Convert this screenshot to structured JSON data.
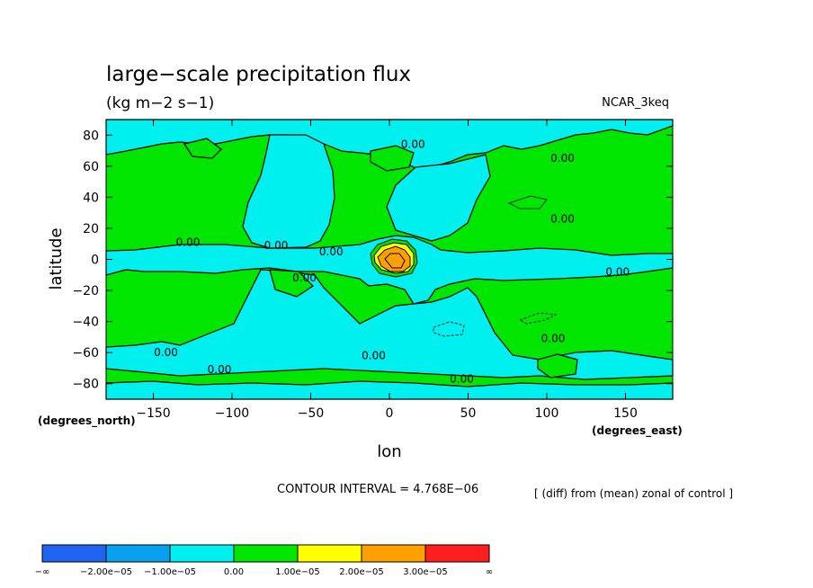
{
  "chart_data": {
    "type": "contour",
    "title": "large−scale precipitation flux",
    "units": "(kg m−2 s−1)",
    "model_label": "NCAR_3keq",
    "xlabel": "lon",
    "ylabel": "latitude",
    "x_units_label": "(degrees_east)",
    "y_units_label": "(degrees_north)",
    "xlim": [
      -180,
      180
    ],
    "ylim": [
      -90,
      90
    ],
    "x_ticks": [
      -150,
      -100,
      -50,
      0,
      50,
      100,
      150
    ],
    "x_tick_labels": [
      "−150",
      "−100",
      "−50",
      "0",
      "50",
      "100",
      "150"
    ],
    "y_ticks": [
      80,
      60,
      40,
      20,
      0,
      -20,
      -40,
      -60,
      -80
    ],
    "y_tick_labels": [
      "80",
      "60",
      "40",
      "20",
      "0",
      "−20",
      "−40",
      "−60",
      "−80"
    ],
    "contour_interval_text": "CONTOUR INTERVAL = 4.768E−06",
    "subtitle_note": "[ (diff) from (mean) zonal of control ]",
    "contour_labels": [
      {
        "text": "0.00",
        "lon": 15,
        "lat": 74
      },
      {
        "text": "0.00",
        "lon": 110,
        "lat": 65
      },
      {
        "text": "0.00",
        "lon": 110,
        "lat": 26
      },
      {
        "text": "0.00",
        "lon": -128,
        "lat": 11
      },
      {
        "text": "0.00",
        "lon": -72,
        "lat": 9
      },
      {
        "text": "0.00",
        "lon": -37,
        "lat": 5
      },
      {
        "text": "0.00",
        "lon": -54,
        "lat": -12
      },
      {
        "text": "0.00",
        "lon": 145,
        "lat": -8
      },
      {
        "text": "0.00",
        "lon": -142,
        "lat": -60
      },
      {
        "text": "0.00",
        "lon": -108,
        "lat": -71
      },
      {
        "text": "0.00",
        "lon": -10,
        "lat": -62
      },
      {
        "text": "0.00",
        "lon": 104,
        "lat": -51
      },
      {
        "text": "0.00",
        "lon": 46,
        "lat": -77
      }
    ],
    "features": [
      {
        "name": "equatorial maximum",
        "lon": 2,
        "lat": 0,
        "peak_approx": 3e-05
      }
    ],
    "colorbar": {
      "colors": [
        "#1e64f0",
        "#0aa0f0",
        "#00f0f0",
        "#00e600",
        "#ffff00",
        "#ffa000",
        "#ff1e1e"
      ],
      "labels": [
        "−∞",
        "−2.00e−05",
        "−1.00e−05",
        "0.00",
        "1.00e−05",
        "2.00e−05",
        "3.00e−05",
        "∞"
      ]
    }
  }
}
